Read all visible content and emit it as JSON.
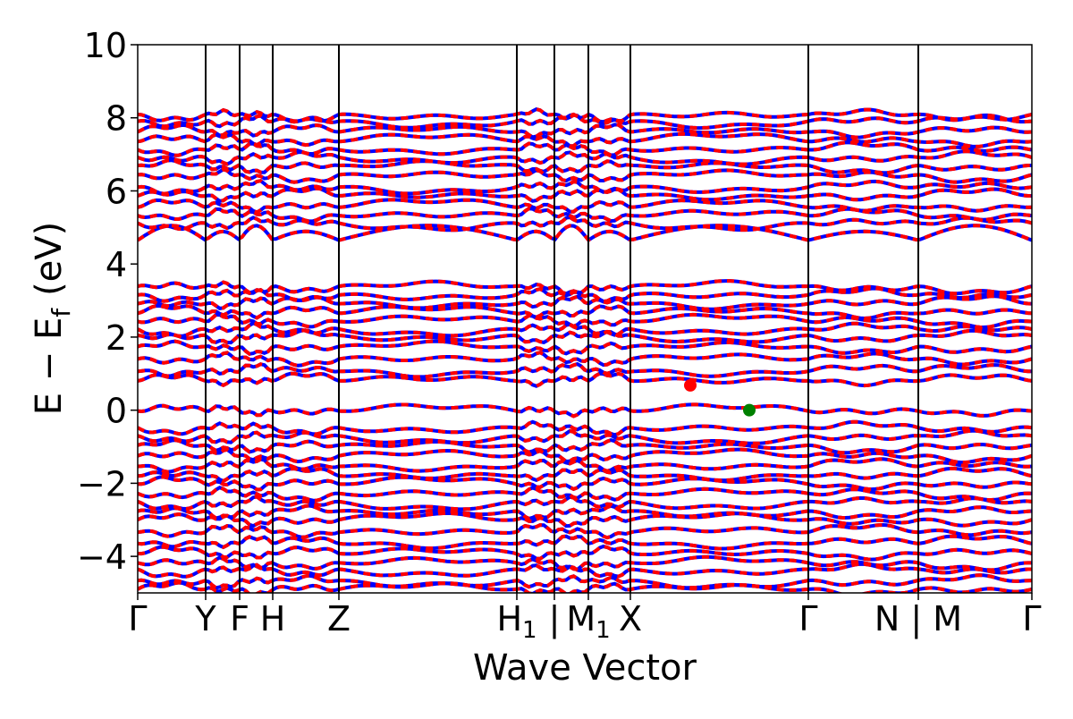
{
  "chart_data": {
    "type": "line",
    "title": "",
    "xlabel": "Wave Vector",
    "ylabel": {
      "main": "E − E",
      "sub": "f",
      "unit": "(eV)"
    },
    "ylim": [
      -5,
      10
    ],
    "yticks": [
      -4,
      -2,
      0,
      2,
      4,
      6,
      8,
      10
    ],
    "ytick_labels": [
      "−4",
      "−2",
      "0",
      "2",
      "4",
      "6",
      "8",
      "10"
    ],
    "xlim": [
      0,
      1
    ],
    "grid": false,
    "kpath_ticks": [
      {
        "k": 0.0,
        "label": "Γ"
      },
      {
        "k": 0.076,
        "label": "Y"
      },
      {
        "k": 0.114,
        "label": "F"
      },
      {
        "k": 0.151,
        "label": "H"
      },
      {
        "k": 0.225,
        "label": "Z"
      },
      {
        "k": 0.424,
        "label": "H",
        "sub": "1"
      },
      {
        "k": 0.466,
        "label": "|",
        "note": "path break"
      },
      {
        "k": 0.504,
        "label": "M",
        "sub": "1"
      },
      {
        "k": 0.551,
        "label": "X"
      },
      {
        "k": 0.75,
        "label": "Γ"
      },
      {
        "k": 0.873,
        "label": "N | M"
      },
      {
        "k": 1.0,
        "label": "Γ"
      }
    ],
    "series": [
      {
        "spin": "up",
        "color": "#0000ff",
        "style": "solid",
        "bands_energies": [
          -4.9,
          -4.7,
          -4.4,
          -4.2,
          -3.9,
          -3.6,
          -3.3,
          -3.0,
          -2.8,
          -2.55,
          -2.3,
          -2.0,
          -1.75,
          -1.5,
          -1.25,
          -1.0,
          -0.75,
          -0.5,
          0.0,
          0.85,
          1.1,
          1.4,
          1.7,
          2.0,
          2.2,
          2.45,
          2.7,
          2.95,
          3.15,
          3.35,
          4.65,
          5.1,
          5.35,
          5.6,
          5.9,
          6.1,
          6.4,
          6.65,
          6.9,
          7.15,
          7.4,
          7.65,
          7.9,
          8.05
        ]
      },
      {
        "spin": "down",
        "color": "#ff0000",
        "style": "dashed",
        "bands_energies": [
          -4.9,
          -4.7,
          -4.4,
          -4.2,
          -3.9,
          -3.6,
          -3.3,
          -3.0,
          -2.8,
          -2.55,
          -2.3,
          -2.0,
          -1.75,
          -1.5,
          -1.25,
          -1.0,
          -0.75,
          -0.5,
          0.0,
          0.85,
          1.1,
          1.4,
          1.7,
          2.0,
          2.2,
          2.45,
          2.7,
          2.95,
          3.15,
          3.35,
          4.65,
          5.1,
          5.35,
          5.6,
          5.9,
          6.1,
          6.4,
          6.65,
          6.9,
          7.15,
          7.4,
          7.65,
          7.9,
          8.05
        ]
      }
    ],
    "markers": [
      {
        "name": "cbm",
        "k": 0.618,
        "E": 0.68,
        "color": "#ff0000"
      },
      {
        "name": "vbm",
        "k": 0.684,
        "E": 0.0,
        "color": "#008000"
      }
    ],
    "colors": {
      "spin_up": "#0000ff",
      "spin_down": "#ff0000",
      "vbm": "#008000",
      "cbm": "#ff0000",
      "axis": "#000000"
    }
  }
}
